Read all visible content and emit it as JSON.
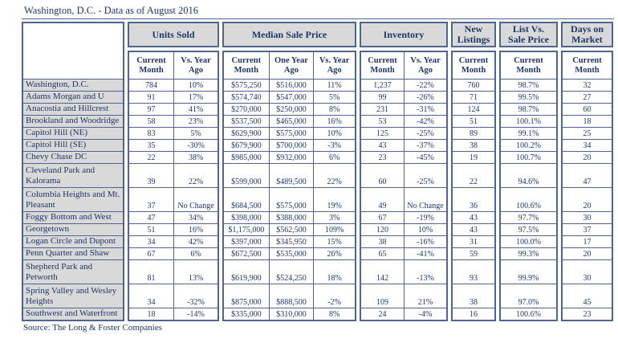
{
  "title": "Washington, D.C. - Data as of August 2016",
  "source": "Source: The Long & Foster Companies",
  "colors": {
    "text": "#1e3765",
    "border": "#4f6590",
    "header_bg": "#d9d9d9"
  },
  "table": {
    "groups": [
      {
        "label": "Units Sold",
        "sub": [
          "Current\nMonth",
          "Vs. Year\nAgo"
        ]
      },
      {
        "label": "Median Sale Price",
        "sub": [
          "Current\nMonth",
          "One Year\nAgo",
          "Vs. Year\nAgo"
        ]
      },
      {
        "label": "Inventory",
        "sub": [
          "Current\nMonth",
          "Vs. Year\nAgo"
        ]
      },
      {
        "label": "New\nListings",
        "sub": [
          "Current\nMonth"
        ]
      },
      {
        "label": "List Vs.\nSale Price",
        "sub": [
          "Current\nMonth"
        ]
      },
      {
        "label": "Days on\nMarket",
        "sub": [
          "Current\nMonth"
        ]
      }
    ],
    "rows": [
      {
        "name": "Washington, D.C.",
        "units": [
          "784",
          "10%"
        ],
        "median": [
          "$575,250",
          "$516,000",
          "11%"
        ],
        "inventory": [
          "1,237",
          "-22%"
        ],
        "new_listings": "760",
        "list_vs_sale": "98.7%",
        "days_on_market": "32"
      },
      {
        "name": "Adams Morgan and U",
        "units": [
          "91",
          "17%"
        ],
        "median": [
          "$574,740",
          "$547,000",
          "5%"
        ],
        "inventory": [
          "99",
          "-26%"
        ],
        "new_listings": "71",
        "list_vs_sale": "99.5%",
        "days_on_market": "27"
      },
      {
        "name": "Anacostia and Hillcrest",
        "units": [
          "97",
          "41%"
        ],
        "median": [
          "$270,000",
          "$250,000",
          "8%"
        ],
        "inventory": [
          "231",
          "-31%"
        ],
        "new_listings": "124",
        "list_vs_sale": "98.7%",
        "days_on_market": "60"
      },
      {
        "name": "Brookland and Woodridge",
        "units": [
          "58",
          "23%"
        ],
        "median": [
          "$537,500",
          "$465,000",
          "16%"
        ],
        "inventory": [
          "53",
          "-42%"
        ],
        "new_listings": "51",
        "list_vs_sale": "100.1%",
        "days_on_market": "18"
      },
      {
        "name": "Capitol Hill (NE)",
        "units": [
          "83",
          "5%"
        ],
        "median": [
          "$629,900",
          "$575,000",
          "10%"
        ],
        "inventory": [
          "125",
          "-25%"
        ],
        "new_listings": "89",
        "list_vs_sale": "99.1%",
        "days_on_market": "25"
      },
      {
        "name": "Capitol Hill (SE)",
        "units": [
          "35",
          "-30%"
        ],
        "median": [
          "$679,900",
          "$700,000",
          "-3%"
        ],
        "inventory": [
          "43",
          "-37%"
        ],
        "new_listings": "38",
        "list_vs_sale": "100.2%",
        "days_on_market": "34"
      },
      {
        "name": "Chevy Chase DC",
        "units": [
          "22",
          "38%"
        ],
        "median": [
          "$985,000",
          "$932,000",
          "6%"
        ],
        "inventory": [
          "23",
          "-45%"
        ],
        "new_listings": "19",
        "list_vs_sale": "100.7%",
        "days_on_market": "20"
      },
      {
        "name": "Cleveland Park and Kalorama",
        "units": [
          "39",
          "22%"
        ],
        "median": [
          "$599,000",
          "$489,500",
          "22%"
        ],
        "inventory": [
          "60",
          "-25%"
        ],
        "new_listings": "22",
        "list_vs_sale": "94.6%",
        "days_on_market": "47"
      },
      {
        "name": "Columbia Heights and Mt. Pleasant",
        "units": [
          "37",
          "No Change"
        ],
        "median": [
          "$684,500",
          "$575,000",
          "19%"
        ],
        "inventory": [
          "49",
          "No Change"
        ],
        "new_listings": "36",
        "list_vs_sale": "100.6%",
        "days_on_market": "20"
      },
      {
        "name": "Foggy Bottom and West",
        "units": [
          "47",
          "34%"
        ],
        "median": [
          "$398,000",
          "$388,000",
          "3%"
        ],
        "inventory": [
          "67",
          "-19%"
        ],
        "new_listings": "43",
        "list_vs_sale": "97.7%",
        "days_on_market": "30"
      },
      {
        "name": "Georgetown",
        "units": [
          "51",
          "16%"
        ],
        "median": [
          "$1,175,000",
          "$562,500",
          "109%"
        ],
        "inventory": [
          "120",
          "10%"
        ],
        "new_listings": "43",
        "list_vs_sale": "97.5%",
        "days_on_market": "37"
      },
      {
        "name": "Logan Circle and Dupont",
        "units": [
          "34",
          "42%"
        ],
        "median": [
          "$397,000",
          "$345,950",
          "15%"
        ],
        "inventory": [
          "38",
          "-16%"
        ],
        "new_listings": "31",
        "list_vs_sale": "100.0%",
        "days_on_market": "17"
      },
      {
        "name": "Penn Quarter and Shaw",
        "units": [
          "67",
          "6%"
        ],
        "median": [
          "$672,500",
          "$535,000",
          "26%"
        ],
        "inventory": [
          "65",
          "-41%"
        ],
        "new_listings": "59",
        "list_vs_sale": "99.3%",
        "days_on_market": "20"
      },
      {
        "name": "Shepherd Park and Petworth",
        "units": [
          "81",
          "13%"
        ],
        "median": [
          "$619,900",
          "$524,250",
          "18%"
        ],
        "inventory": [
          "142",
          "-13%"
        ],
        "new_listings": "93",
        "list_vs_sale": "99.9%",
        "days_on_market": "30"
      },
      {
        "name": "Spring Valley and Wesley Heights",
        "units": [
          "34",
          "-32%"
        ],
        "median": [
          "$875,000",
          "$888,500",
          "-2%"
        ],
        "inventory": [
          "109",
          "21%"
        ],
        "new_listings": "38",
        "list_vs_sale": "97.0%",
        "days_on_market": "45"
      },
      {
        "name": "Southwest and Waterfront",
        "units": [
          "18",
          "-14%"
        ],
        "median": [
          "$335,000",
          "$310,000",
          "8%"
        ],
        "inventory": [
          "24",
          "-4%"
        ],
        "new_listings": "16",
        "list_vs_sale": "100.6%",
        "days_on_market": "23"
      }
    ]
  }
}
